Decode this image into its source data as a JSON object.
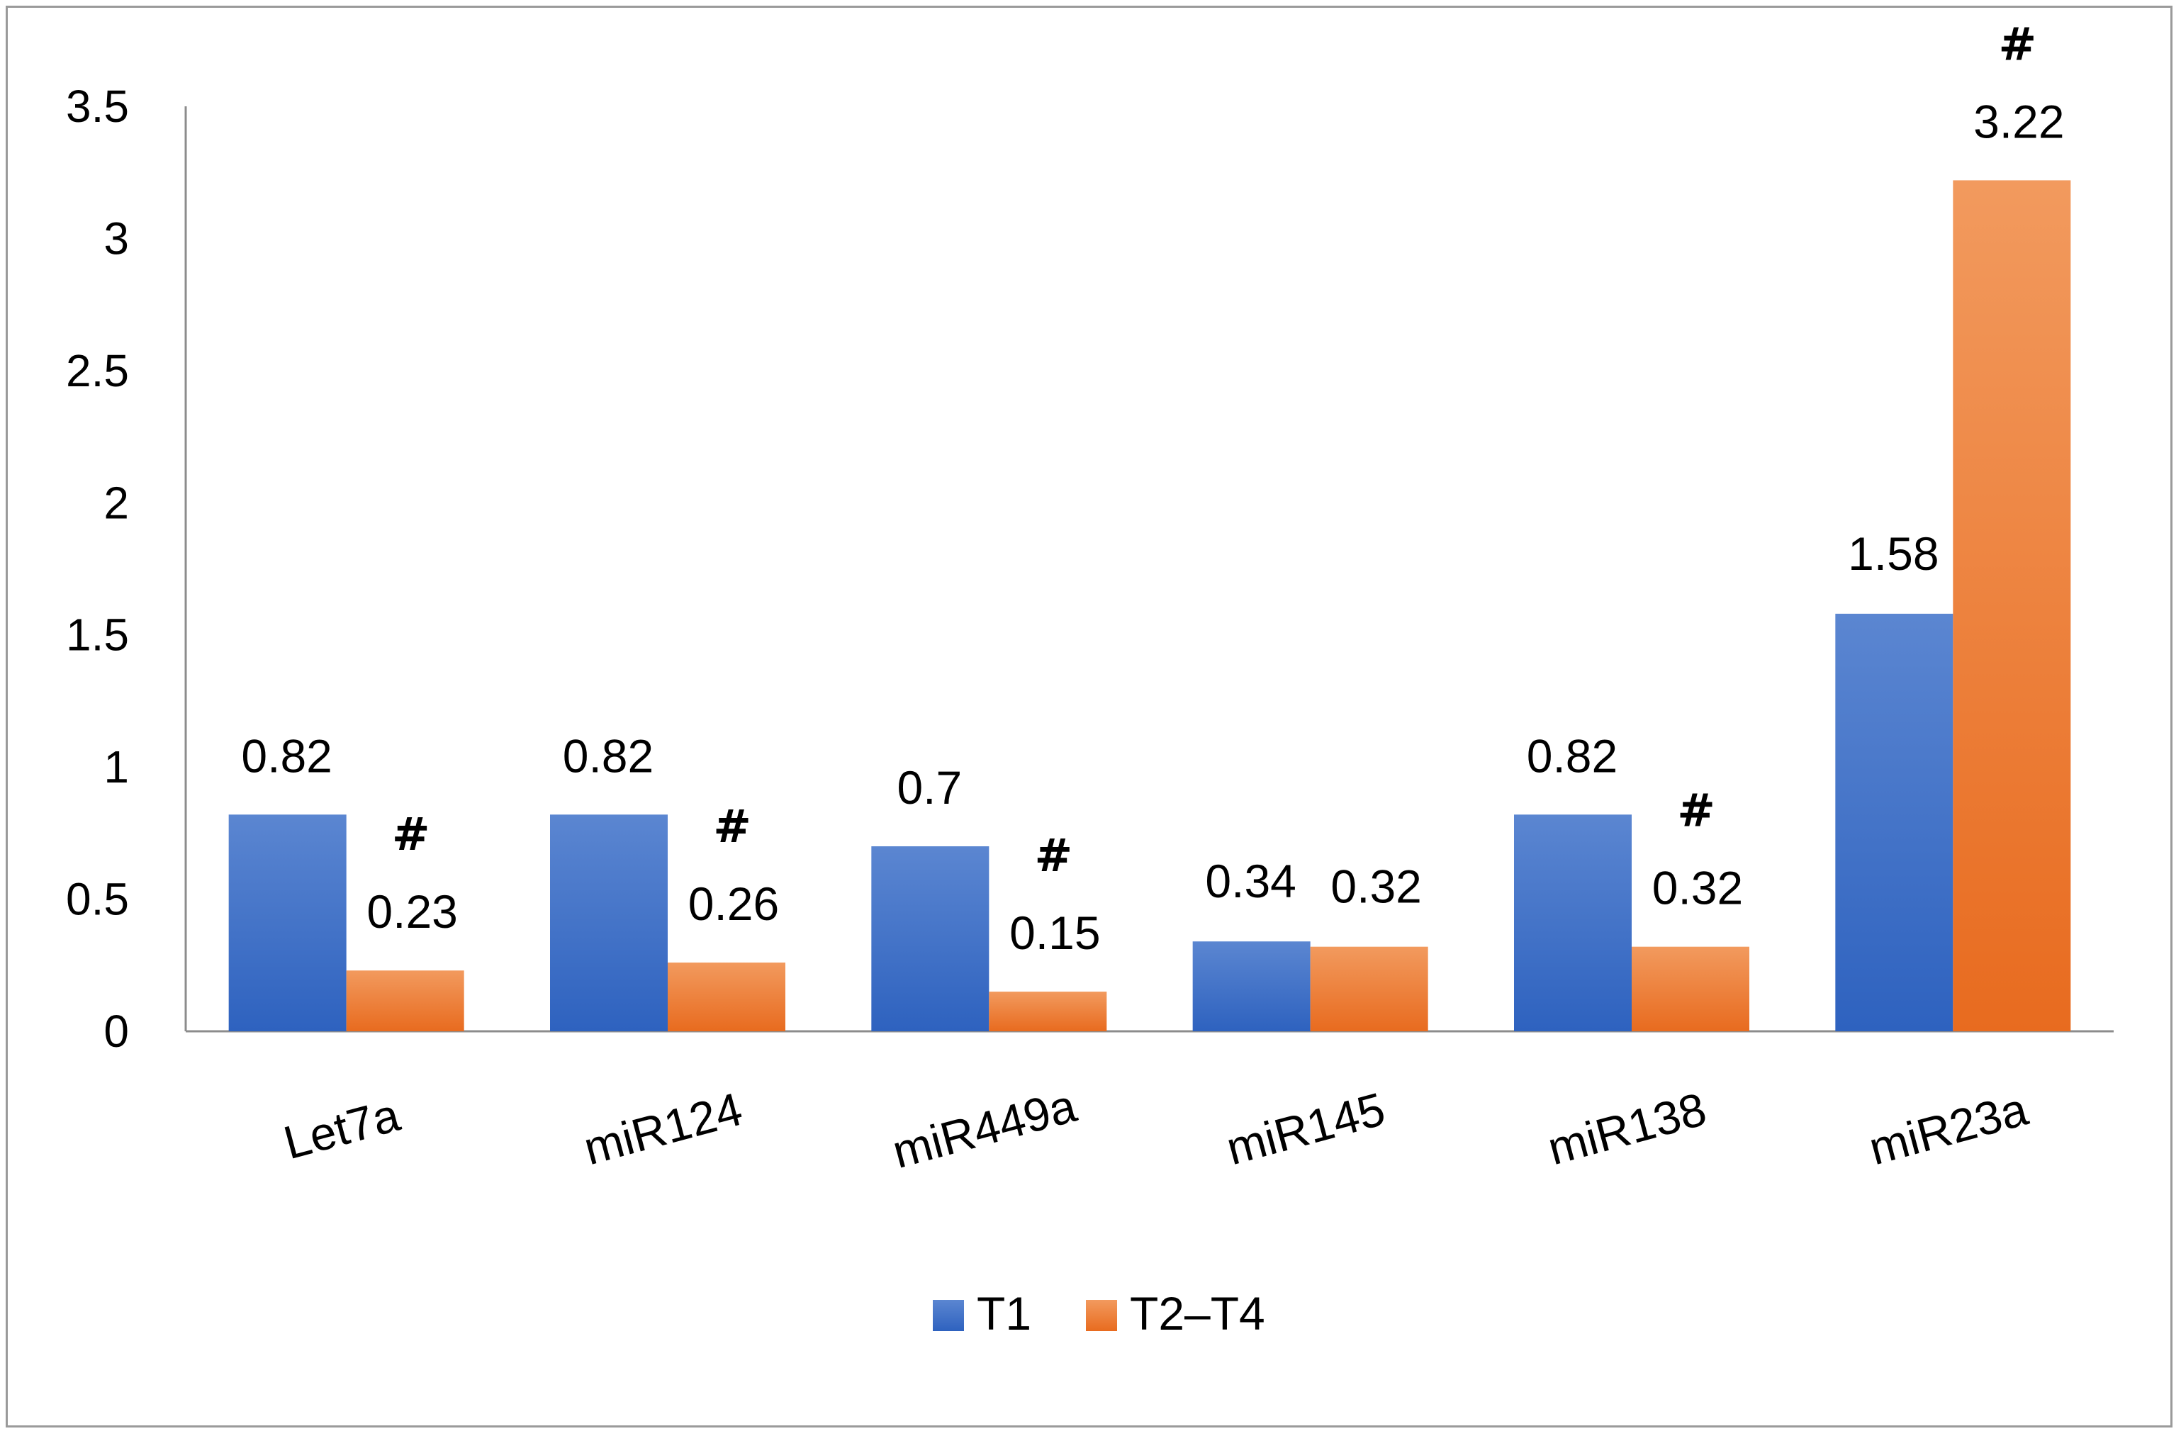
{
  "chart_data": {
    "type": "bar",
    "categories": [
      "Let7a",
      "miR124",
      "miR449a",
      "miR145",
      "miR138",
      "miR23a"
    ],
    "series": [
      {
        "name": "T1",
        "values": [
          0.82,
          0.82,
          0.7,
          0.34,
          0.82,
          1.58
        ],
        "color_top": "#5b86d1",
        "color_bottom": "#2e62bf"
      },
      {
        "name": "T2–T4",
        "values": [
          0.23,
          0.26,
          0.15,
          0.32,
          0.32,
          3.22
        ],
        "color_top": "#f29a5e",
        "color_bottom": "#e86b1f"
      }
    ],
    "value_labels": [
      [
        "0.82",
        "0.82",
        "0.7",
        "0.34",
        "0.82",
        "1.58"
      ],
      [
        "0.23",
        "0.26",
        "0.15",
        "0.32",
        "0.32",
        "3.22"
      ]
    ],
    "significance_marks": [
      "#",
      "#",
      "#",
      "",
      "#",
      "#"
    ],
    "yticks": [
      "0",
      "0.5",
      "1",
      "1.5",
      "2",
      "2.5",
      "3",
      "3.5"
    ],
    "ylim": [
      0,
      3.5
    ],
    "title": "",
    "xlabel": "",
    "ylabel": "",
    "legend_position": "bottom",
    "grid": false
  }
}
